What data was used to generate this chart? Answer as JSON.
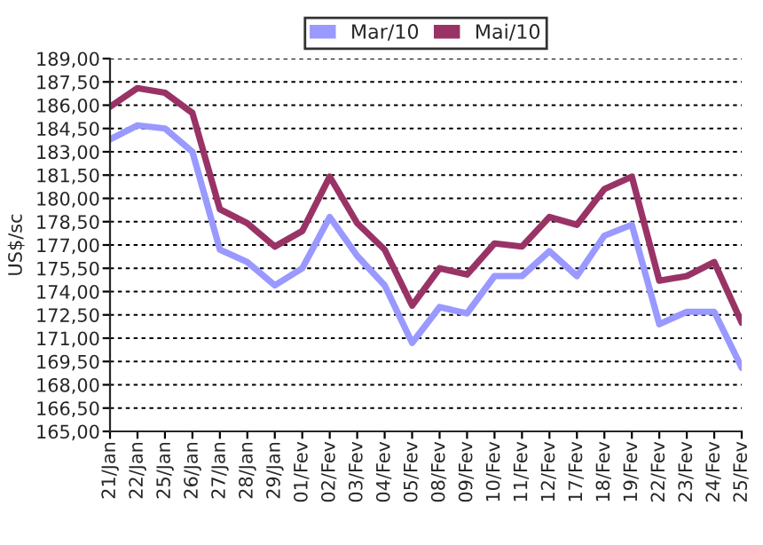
{
  "chart_data": {
    "type": "line",
    "ylabel": "US$/sc",
    "categories": [
      "21/Jan",
      "22/Jan",
      "25/Jan",
      "26/Jan",
      "27/Jan",
      "28/Jan",
      "29/Jan",
      "01/Fev",
      "02/Fev",
      "03/Fev",
      "04/Fev",
      "05/Fev",
      "08/Fev",
      "09/Fev",
      "10/Fev",
      "11/Fev",
      "12/Fev",
      "17/Fev",
      "18/Fev",
      "19/Fev",
      "22/Fev",
      "23/Fev",
      "24/Fev",
      "25/Fev"
    ],
    "series": [
      {
        "name": "Mar/10",
        "color": "#9999ff",
        "values": [
          183.8,
          184.7,
          184.5,
          183.0,
          176.7,
          175.9,
          174.4,
          175.5,
          178.8,
          176.3,
          174.4,
          170.7,
          173.0,
          172.6,
          175.0,
          175.0,
          176.6,
          175.0,
          177.6,
          178.3,
          171.9,
          172.7,
          172.7,
          169.1
        ]
      },
      {
        "name": "Mai/10",
        "color": "#993366",
        "values": [
          185.9,
          187.1,
          186.8,
          185.5,
          179.3,
          178.4,
          176.9,
          177.9,
          181.4,
          178.4,
          176.7,
          173.1,
          175.5,
          175.1,
          177.1,
          176.9,
          178.8,
          178.3,
          180.6,
          181.4,
          174.7,
          175.0,
          175.9,
          172.0
        ]
      }
    ],
    "ylim": [
      165,
      189
    ],
    "yticks": [
      {
        "value": 165,
        "label": "165,00"
      },
      {
        "value": 166.5,
        "label": "166,50"
      },
      {
        "value": 168,
        "label": "168,00"
      },
      {
        "value": 169.5,
        "label": "169,50"
      },
      {
        "value": 171,
        "label": "171,00"
      },
      {
        "value": 172.5,
        "label": "172,50"
      },
      {
        "value": 174,
        "label": "174,00"
      },
      {
        "value": 175.5,
        "label": "175,50"
      },
      {
        "value": 177,
        "label": "177,00"
      },
      {
        "value": 178.5,
        "label": "178,50"
      },
      {
        "value": 180,
        "label": "180,00"
      },
      {
        "value": 181.5,
        "label": "181,50"
      },
      {
        "value": 183,
        "label": "183,00"
      },
      {
        "value": 184.5,
        "label": "184,50"
      },
      {
        "value": 186,
        "label": "186,00"
      },
      {
        "value": 187.5,
        "label": "187,50"
      },
      {
        "value": 189,
        "label": "189,00"
      }
    ],
    "grid": "y",
    "legend": "top",
    "marker": "none",
    "line_style": "solid"
  }
}
